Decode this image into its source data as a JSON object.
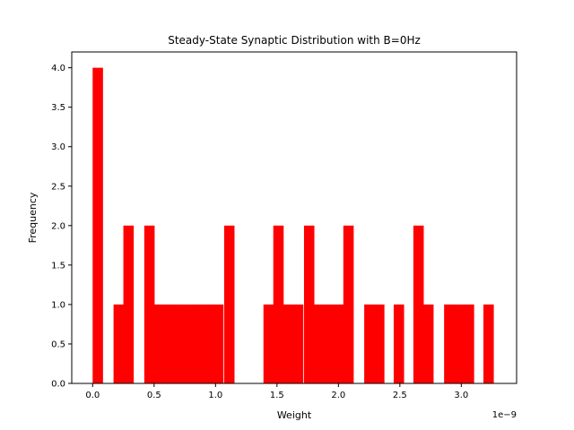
{
  "chart_data": {
    "type": "bar",
    "title": "Steady-State Synaptic Distribution with B=0Hz",
    "xlabel": "Weight",
    "ylabel": "Frequency",
    "x_offset_label": "1e−9",
    "xlim": [
      -0.17,
      3.45
    ],
    "ylim": [
      0,
      4.2
    ],
    "bar_color": "#ff0000",
    "bin_width": 0.0815,
    "bins": [
      {
        "x": 0.0,
        "value": 4
      },
      {
        "x": 0.17,
        "value": 1
      },
      {
        "x": 0.25,
        "value": 2
      },
      {
        "x": 0.42,
        "value": 2
      },
      {
        "x": 0.5,
        "value": 1
      },
      {
        "x": 0.58,
        "value": 1
      },
      {
        "x": 0.66,
        "value": 1
      },
      {
        "x": 0.74,
        "value": 1
      },
      {
        "x": 0.82,
        "value": 1
      },
      {
        "x": 0.9,
        "value": 1
      },
      {
        "x": 0.98,
        "value": 1
      },
      {
        "x": 1.07,
        "value": 2
      },
      {
        "x": 1.39,
        "value": 1
      },
      {
        "x": 1.47,
        "value": 2
      },
      {
        "x": 1.55,
        "value": 1
      },
      {
        "x": 1.63,
        "value": 1
      },
      {
        "x": 1.72,
        "value": 2
      },
      {
        "x": 1.8,
        "value": 1
      },
      {
        "x": 1.88,
        "value": 1
      },
      {
        "x": 1.96,
        "value": 1
      },
      {
        "x": 2.04,
        "value": 2
      },
      {
        "x": 2.21,
        "value": 1
      },
      {
        "x": 2.29,
        "value": 1
      },
      {
        "x": 2.45,
        "value": 1
      },
      {
        "x": 2.61,
        "value": 2
      },
      {
        "x": 2.69,
        "value": 1
      },
      {
        "x": 2.86,
        "value": 1
      },
      {
        "x": 2.94,
        "value": 1
      },
      {
        "x": 3.02,
        "value": 1
      },
      {
        "x": 3.18,
        "value": 1
      }
    ],
    "x_ticks": [
      {
        "value": 0.0,
        "label": "0.0"
      },
      {
        "value": 0.5,
        "label": "0.5"
      },
      {
        "value": 1.0,
        "label": "1.0"
      },
      {
        "value": 1.5,
        "label": "1.5"
      },
      {
        "value": 2.0,
        "label": "2.0"
      },
      {
        "value": 2.5,
        "label": "2.5"
      },
      {
        "value": 3.0,
        "label": "3.0"
      }
    ],
    "y_ticks": [
      {
        "value": 0.0,
        "label": "0.0"
      },
      {
        "value": 0.5,
        "label": "0.5"
      },
      {
        "value": 1.0,
        "label": "1.0"
      },
      {
        "value": 1.5,
        "label": "1.5"
      },
      {
        "value": 2.0,
        "label": "2.0"
      },
      {
        "value": 2.5,
        "label": "2.5"
      },
      {
        "value": 3.0,
        "label": "3.0"
      },
      {
        "value": 3.5,
        "label": "3.5"
      },
      {
        "value": 4.0,
        "label": "4.0"
      }
    ],
    "grid": false,
    "legend": "none"
  }
}
